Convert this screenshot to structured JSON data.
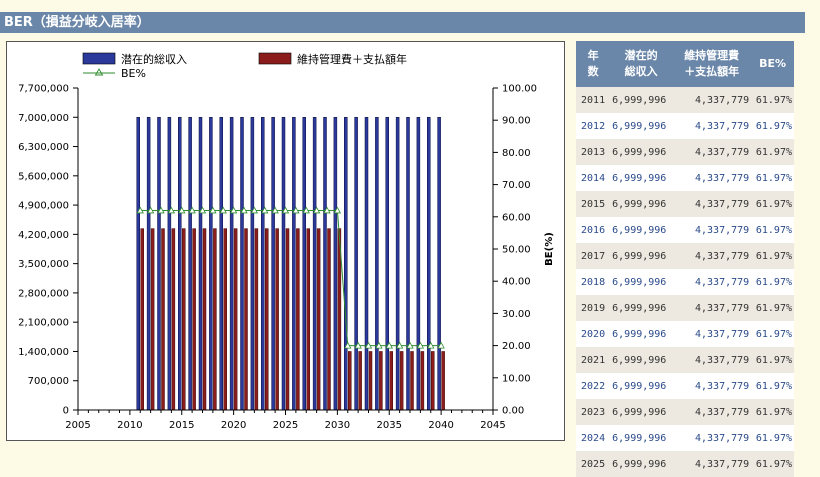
{
  "header": {
    "title": "BER（損益分岐入居率）"
  },
  "table": {
    "columns": [
      "年数",
      "潜在的総収入",
      "維持管理費＋支払額年",
      "BE%"
    ],
    "column_lines": [
      [
        "年",
        "数"
      ],
      [
        "潜在的",
        "総収入"
      ],
      [
        "維持管理費",
        "＋支払額年"
      ],
      [
        "BE%"
      ]
    ],
    "rows": [
      [
        "2011",
        "6,999,996",
        "4,337,779",
        "61.97%"
      ],
      [
        "2012",
        "6,999,996",
        "4,337,779",
        "61.97%"
      ],
      [
        "2013",
        "6,999,996",
        "4,337,779",
        "61.97%"
      ],
      [
        "2014",
        "6,999,996",
        "4,337,779",
        "61.97%"
      ],
      [
        "2015",
        "6,999,996",
        "4,337,779",
        "61.97%"
      ],
      [
        "2016",
        "6,999,996",
        "4,337,779",
        "61.97%"
      ],
      [
        "2017",
        "6,999,996",
        "4,337,779",
        "61.97%"
      ],
      [
        "2018",
        "6,999,996",
        "4,337,779",
        "61.97%"
      ],
      [
        "2019",
        "6,999,996",
        "4,337,779",
        "61.97%"
      ],
      [
        "2020",
        "6,999,996",
        "4,337,779",
        "61.97%"
      ],
      [
        "2021",
        "6,999,996",
        "4,337,779",
        "61.97%"
      ],
      [
        "2022",
        "6,999,996",
        "4,337,779",
        "61.97%"
      ],
      [
        "2023",
        "6,999,996",
        "4,337,779",
        "61.97%"
      ],
      [
        "2024",
        "6,999,996",
        "4,337,779",
        "61.97%"
      ],
      [
        "2025",
        "6,999,996",
        "4,337,779",
        "61.97%"
      ]
    ]
  },
  "chart_data": {
    "type": "bar",
    "legend": [
      "潜在的総収入",
      "維持管理費＋支払額年",
      "BE%"
    ],
    "legend_position": "top",
    "x": [
      2011,
      2012,
      2013,
      2014,
      2015,
      2016,
      2017,
      2018,
      2019,
      2020,
      2021,
      2022,
      2023,
      2024,
      2025,
      2026,
      2027,
      2028,
      2029,
      2030,
      2031,
      2032,
      2033,
      2034,
      2035,
      2036,
      2037,
      2038,
      2039,
      2040
    ],
    "series": [
      {
        "name": "潜在的総収入",
        "kind": "bar",
        "axis": "left",
        "color": "#2b3a9a",
        "values": [
          7000000,
          7000000,
          7000000,
          7000000,
          7000000,
          7000000,
          7000000,
          7000000,
          7000000,
          7000000,
          7000000,
          7000000,
          7000000,
          7000000,
          7000000,
          7000000,
          7000000,
          7000000,
          7000000,
          7000000,
          7000000,
          7000000,
          7000000,
          7000000,
          7000000,
          7000000,
          7000000,
          7000000,
          7000000,
          7000000
        ]
      },
      {
        "name": "維持管理費＋支払額年",
        "kind": "bar",
        "axis": "left",
        "color": "#8a1c1c",
        "values": [
          4337779,
          4337779,
          4337779,
          4337779,
          4337779,
          4337779,
          4337779,
          4337779,
          4337779,
          4337779,
          4337779,
          4337779,
          4337779,
          4337779,
          4337779,
          4337779,
          4337779,
          4337779,
          4337779,
          4337779,
          1400000,
          1400000,
          1400000,
          1400000,
          1400000,
          1400000,
          1400000,
          1400000,
          1400000,
          1400000
        ]
      },
      {
        "name": "BE%",
        "kind": "line",
        "axis": "right",
        "color": "#2e8b2e",
        "values": [
          61.97,
          61.97,
          61.97,
          61.97,
          61.97,
          61.97,
          61.97,
          61.97,
          61.97,
          61.97,
          61.97,
          61.97,
          61.97,
          61.97,
          61.97,
          61.97,
          61.97,
          61.97,
          61.97,
          61.97,
          20,
          20,
          20,
          20,
          20,
          20,
          20,
          20,
          20,
          20
        ]
      }
    ],
    "xlim": [
      2005,
      2045
    ],
    "xticks": [
      "2005",
      "2010",
      "2015",
      "2020",
      "2025",
      "2030",
      "2035",
      "2040",
      "2045"
    ],
    "ylim_left": [
      0,
      7700000
    ],
    "yticks_left": [
      "0",
      "700,000",
      "1,400,000",
      "2,100,000",
      "2,800,000",
      "3,500,000",
      "4,200,000",
      "4,900,000",
      "5,600,000",
      "6,300,000",
      "7,000,000",
      "7,700,000"
    ],
    "ylim_right": [
      0,
      100
    ],
    "yticks_right": [
      "0.00",
      "10.00",
      "20.00",
      "30.00",
      "40.00",
      "50.00",
      "60.00",
      "70.00",
      "80.00",
      "90.00",
      "100.00"
    ],
    "ylabel_right": "BE(%)",
    "grid": false
  }
}
